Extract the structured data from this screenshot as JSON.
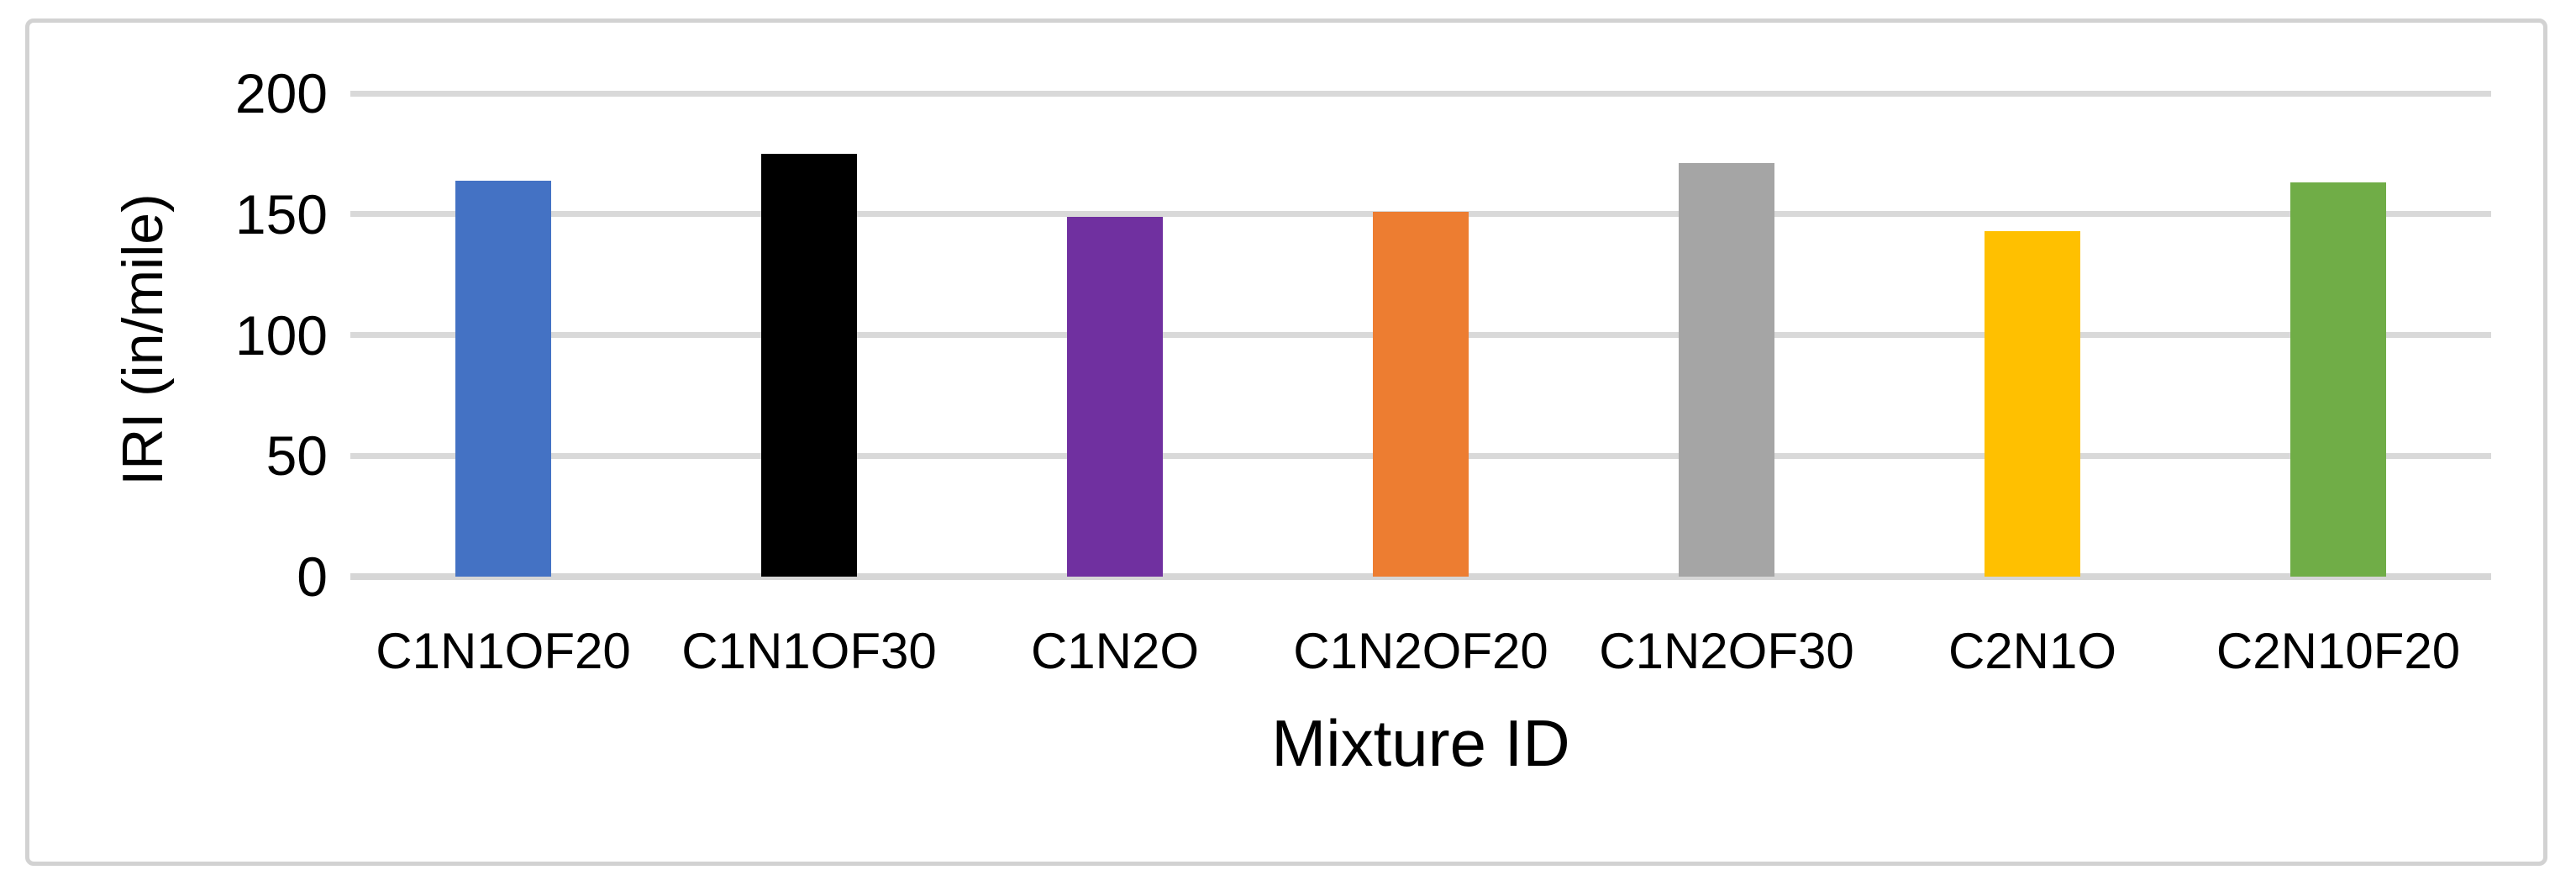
{
  "frame": {
    "background_color": "#FFFFFF",
    "border_color": "#D2D2D2"
  },
  "chart_data": {
    "type": "bar",
    "title": "",
    "categories": [
      "C1N1OF20",
      "C1N1OF30",
      "C1N2O",
      "C1N2OF20",
      "C1N2OF30",
      "C2N1O",
      "C2N10F20"
    ],
    "values": [
      164,
      175,
      149,
      151,
      171,
      143,
      163
    ],
    "bar_colors": [
      "#4472C4",
      "#000000",
      "#7030A0",
      "#ED7D31",
      "#A5A5A5",
      "#FFC000",
      "#70AD47"
    ],
    "xlabel": "Mixture ID",
    "ylabel": "IRI (in/mile)",
    "ylim": [
      0,
      200
    ],
    "ytick_step": 50,
    "ytick_labels": [
      "0",
      "50",
      "100",
      "150",
      "200"
    ],
    "grid": "horizontal",
    "gridline_color": "#D9D9D9",
    "legend": "none",
    "text_color": "#000000"
  }
}
